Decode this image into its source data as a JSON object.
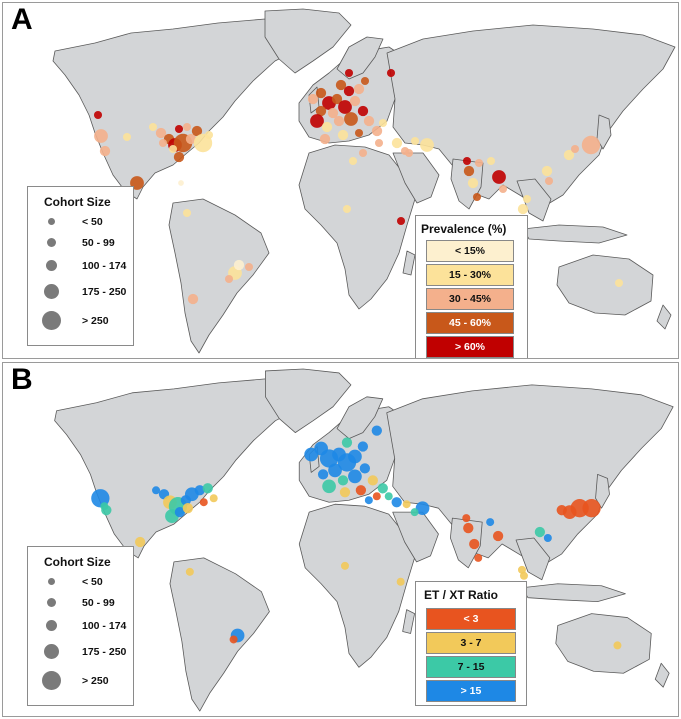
{
  "panels": [
    {
      "letter": "A",
      "size_legend": {
        "title": "Cohort Size",
        "items": [
          "< 50",
          "50 - 99",
          "100 - 174",
          "175 - 250",
          "> 250"
        ]
      },
      "color_legend": {
        "title": "Prevalence (%)",
        "items": [
          {
            "label": "< 15%",
            "color": "#fdf0cf"
          },
          {
            "label": "15 - 30%",
            "color": "#fce29a"
          },
          {
            "label": "30 - 45%",
            "color": "#f4b08c"
          },
          {
            "label": "45 - 60%",
            "color": "#c8581a"
          },
          {
            "label": "> 60%",
            "color": "#c00000"
          }
        ]
      }
    },
    {
      "letter": "B",
      "size_legend": {
        "title": "Cohort Size",
        "items": [
          "< 50",
          "50 - 99",
          "100 - 174",
          "175 - 250",
          "> 250"
        ]
      },
      "color_legend": {
        "title": "ET / XT Ratio",
        "items": [
          {
            "label": "< 3",
            "color": "#e8541f"
          },
          {
            "label": "3 - 7",
            "color": "#f2c95a"
          },
          {
            "label": "7 - 15",
            "color": "#3cc9a6"
          },
          {
            "label": "> 15",
            "color": "#1e88e5"
          }
        ]
      }
    }
  ],
  "style": {
    "land": "#d3d5d7",
    "coast": "#5a5a5a",
    "sea": "#ffffff"
  }
}
